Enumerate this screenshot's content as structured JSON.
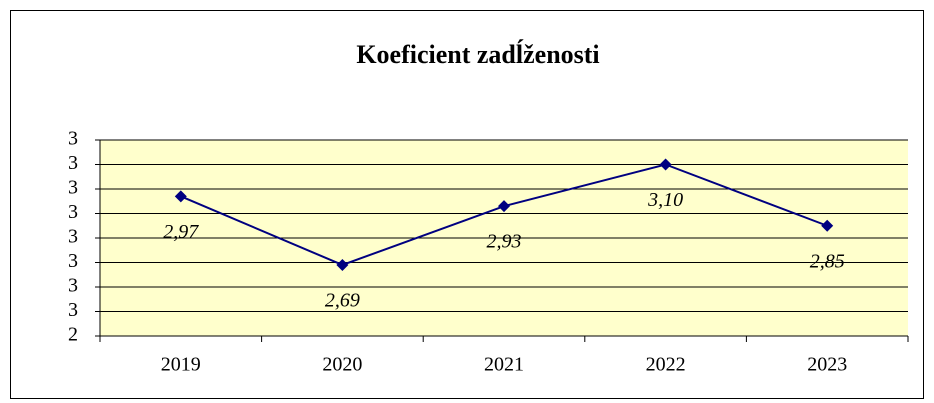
{
  "chart_data": {
    "type": "line",
    "title": "Koeficient zadĺženosti",
    "categories": [
      "2019",
      "2020",
      "2021",
      "2022",
      "2023"
    ],
    "series": [
      {
        "name": "Koeficient zadĺženosti",
        "color": "#000080",
        "values": [
          2.97,
          2.69,
          2.93,
          3.1,
          2.85
        ],
        "value_labels": [
          "2,97",
          "2,69",
          "2,93",
          "3,10",
          "2,85"
        ]
      }
    ],
    "ylim": [
      2.4,
      3.2
    ],
    "yticks": [
      {
        "value": 2.4,
        "label": "2"
      },
      {
        "value": 2.5,
        "label": "3"
      },
      {
        "value": 2.6,
        "label": "3"
      },
      {
        "value": 2.7,
        "label": "3"
      },
      {
        "value": 2.8,
        "label": "3"
      },
      {
        "value": 2.9,
        "label": "3"
      },
      {
        "value": 3.0,
        "label": "3"
      },
      {
        "value": 3.1,
        "label": "3"
      },
      {
        "value": 3.2,
        "label": "3"
      }
    ],
    "grid": true,
    "plot_background": "#ffffcc"
  }
}
